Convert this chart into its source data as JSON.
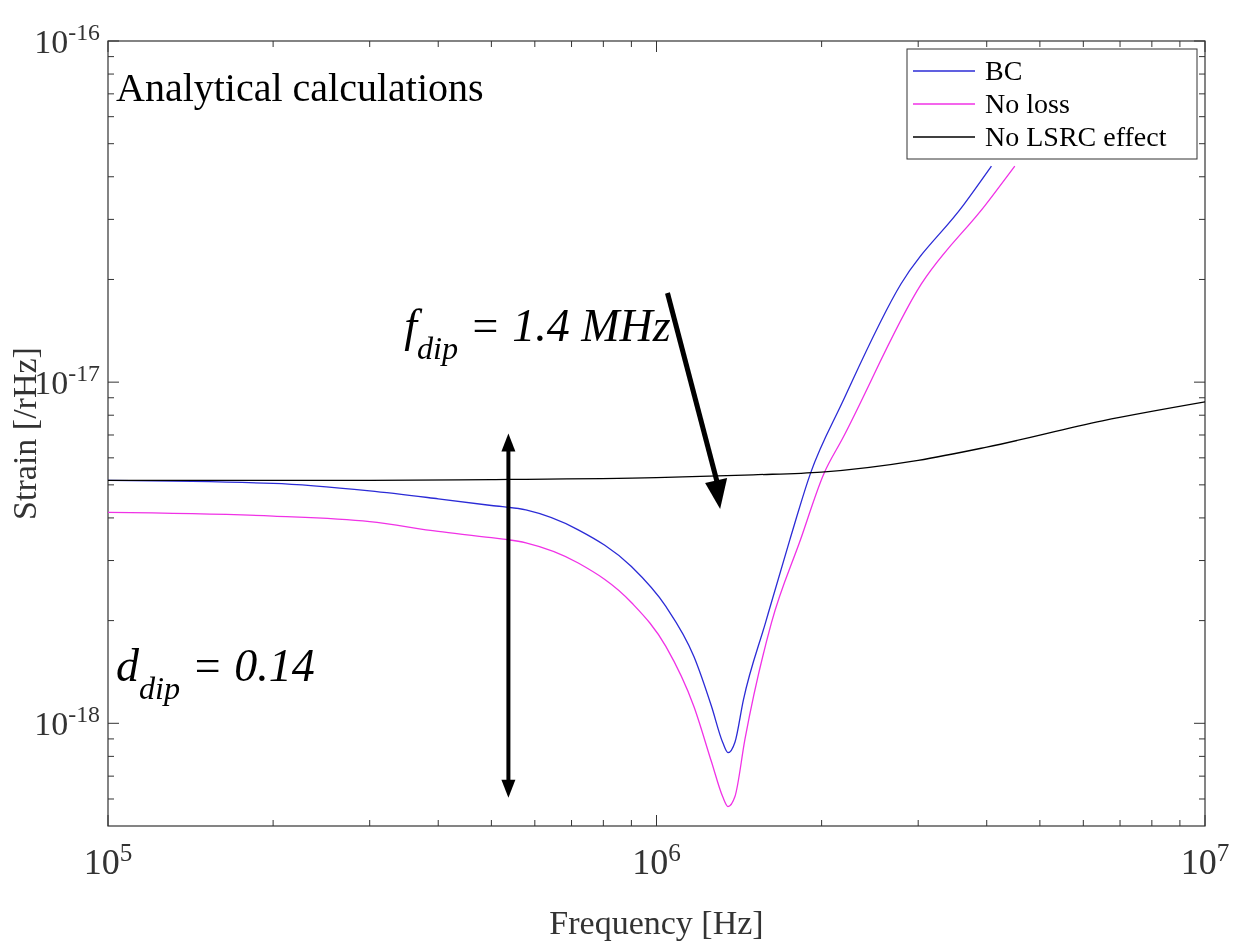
{
  "chart_data": {
    "type": "line",
    "xlabel": "Frequency [Hz]",
    "ylabel": "Strain [/rHz]",
    "log": "xy",
    "grid": false,
    "legend": "top right",
    "line_style": "solid",
    "xlim": [
      100000,
      10000000
    ],
    "ylim": [
      5e-19,
      1e-16
    ],
    "xticks": [
      {
        "value": 100000,
        "label": "10$^{5}$"
      },
      {
        "value": 1000000,
        "label": "10$^{6}$"
      },
      {
        "value": 10000000,
        "label": "10$^{7}$"
      }
    ],
    "yticks": [
      {
        "value": 1e-18,
        "label": "10$^{-18}$"
      },
      {
        "value": 1e-17,
        "label": "10$^{-17}$"
      },
      {
        "value": 1e-16,
        "label": "10$^{-16}$"
      }
    ],
    "annotations": [
      "Analytical calculations",
      "f$_{dip}$ = 1.4 MHz",
      "d$_{dip}$ = 0.14"
    ],
    "series": [
      {
        "name": "BC",
        "color": "#2b2bd6",
        "x": [
          100000,
          200000,
          300000,
          400000,
          500000,
          578000,
          720000,
          900000,
          1040000,
          1170000,
          1260000,
          1320000,
          1350000,
          1390000,
          1440000,
          1580000,
          1750000,
          1910000,
          2180000,
          2790000,
          3630000,
          4080000
        ],
        "values": [
          5.15e-18,
          5.05e-18,
          4.8e-18,
          4.55e-18,
          4.35e-18,
          4.22e-18,
          3.69e-18,
          2.88e-18,
          2.2e-18,
          1.57e-18,
          1.12e-18,
          8.8e-19,
          8.2e-19,
          8.8e-19,
          1.17e-18,
          1.97e-18,
          3.45e-18,
          5.42e-18,
          8.7e-18,
          1.94e-17,
          3.31e-17,
          4.3e-17
        ]
      },
      {
        "name": "No loss",
        "color": "#f032e6",
        "x": [
          100000,
          200000,
          300000,
          400000,
          500000,
          578000,
          720000,
          900000,
          1040000,
          1170000,
          1260000,
          1320000,
          1350000,
          1390000,
          1450000,
          1620000,
          1830000,
          2020000,
          2180000,
          3040000,
          3980000,
          4500000
        ],
        "values": [
          4.15e-18,
          4.05e-18,
          3.9e-18,
          3.65e-18,
          3.5e-18,
          3.38e-18,
          2.95e-18,
          2.26e-18,
          1.68e-18,
          1.12e-18,
          7.7e-19,
          6.1e-19,
          5.7e-19,
          6.1e-19,
          9e-19,
          1.97e-18,
          3.45e-18,
          5.4e-18,
          6.8e-18,
          1.94e-17,
          3.31e-17,
          4.3e-17
        ]
      },
      {
        "name": "No LSRC effect",
        "color": "#000000",
        "x": [
          100000,
          300000,
          500000,
          1000000,
          1500000,
          2000000,
          3000000,
          4000000,
          6500000,
          10000000
        ],
        "values": [
          5.15e-18,
          5.15e-18,
          5.18e-18,
          5.25e-18,
          5.35e-18,
          5.45e-18,
          5.9e-18,
          6.45e-18,
          7.7e-18,
          8.75e-18
        ]
      }
    ]
  }
}
